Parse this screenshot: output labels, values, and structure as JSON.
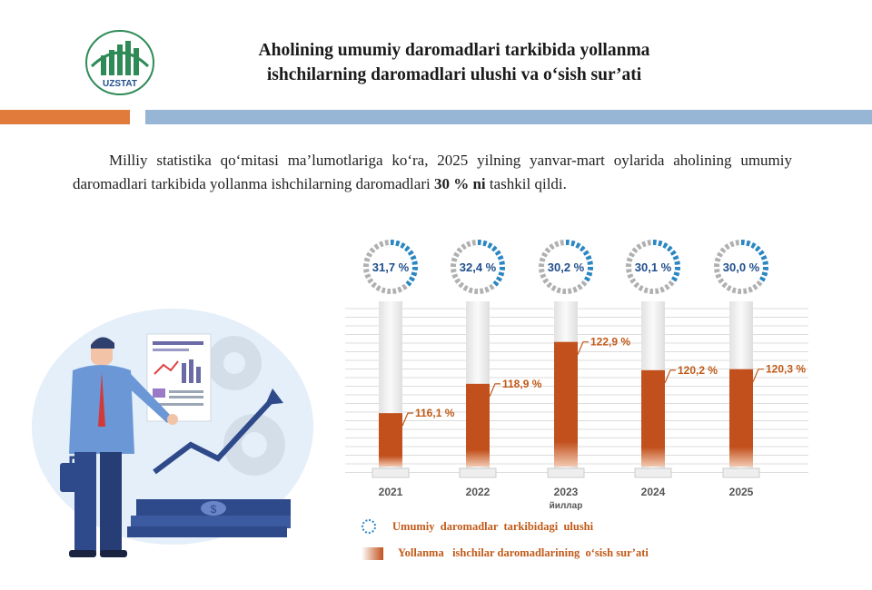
{
  "header": {
    "logo_text": "UZSTAT",
    "title_line1": "Aholining umumiy  daromadlari tarkibida yollanma",
    "title_line2": "ishchilarning daromadlari ulushi va o‘sish sur’ati"
  },
  "intro": {
    "text_before": "Milliy statistika qo‘mitasi ma’lumotlariga ko‘ra, 2025 yilning yanvar-mart oylarida aholining umumiy daromadlari tarkibida yollanma ishchilarning daromadlari ",
    "text_bold": "30 % ni",
    "text_after": " tashkil qildi."
  },
  "chart_data": {
    "type": "bar",
    "categories": [
      "2021",
      "2022",
      "2023",
      "2024",
      "2025"
    ],
    "xlabel": "йиллар",
    "series": [
      {
        "name": "Yollanma   ishchilar daromadlarining  o‘sish sur’ati",
        "values": [
          116.1,
          118.9,
          122.9,
          120.2,
          120.3
        ],
        "labels": [
          "116,1 %",
          "118,9 %",
          "122,9 %",
          "120,2 %",
          "120,3 %"
        ],
        "color": "#c2501c"
      },
      {
        "name": "Umumiy  daromadlar  tarkibidagi  ulushi",
        "values": [
          31.7,
          32.4,
          30.2,
          30.1,
          30.0
        ],
        "labels": [
          "31,7 %",
          "32,4 %",
          "30,2 %",
          "30,1 %",
          "30,0 %"
        ],
        "color": "#2a86c2"
      }
    ],
    "grid": true,
    "legend_position": "bottom"
  },
  "colors": {
    "accent_orange": "#e07b3c",
    "accent_blue": "#97b6d6",
    "bar": "#c2501c",
    "ring_blue": "#2a86c2",
    "ring_gray": "#b0b0b0",
    "ring_text": "#1f4e8c"
  },
  "illustration": {
    "icons": [
      "businessman-icon",
      "presentation-board-icon",
      "gear-icon",
      "growth-arrow-icon",
      "money-stack-icon",
      "briefcase-icon"
    ]
  }
}
